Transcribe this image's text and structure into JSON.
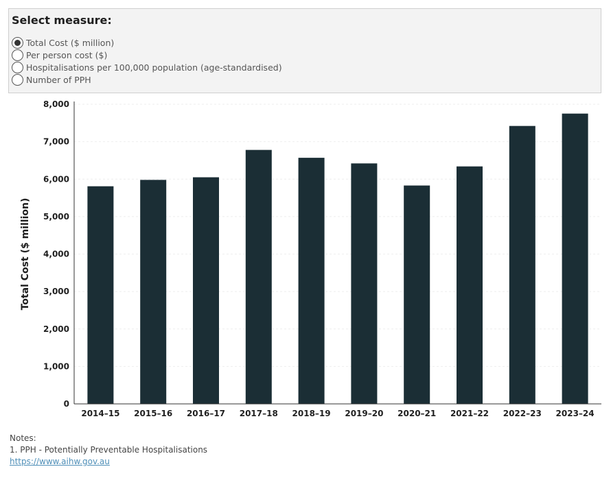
{
  "selector": {
    "title": "Select measure:",
    "options": [
      {
        "label": "Total Cost ($ million)",
        "selected": true
      },
      {
        "label": "Per person cost ($)",
        "selected": false
      },
      {
        "label": "Hospitalisations per 100,000 population (age-standardised)",
        "selected": false
      },
      {
        "label": "Number of PPH",
        "selected": false
      }
    ]
  },
  "chart_data": {
    "type": "bar",
    "categories": [
      "2014–15",
      "2015–16",
      "2016–17",
      "2017–18",
      "2018–19",
      "2019–20",
      "2020–21",
      "2021–22",
      "2022–23",
      "2023–24"
    ],
    "values": [
      5810,
      5980,
      6050,
      6780,
      6570,
      6420,
      5830,
      6340,
      7420,
      7750
    ],
    "title": "",
    "xlabel": "",
    "ylabel": "Total Cost ($ million)",
    "ylim": [
      0,
      8000
    ],
    "yticks": [
      0,
      1000,
      2000,
      3000,
      4000,
      5000,
      6000,
      7000,
      8000
    ],
    "ytick_labels": [
      "0",
      "1,000",
      "2,000",
      "3,000",
      "4,000",
      "5,000",
      "6,000",
      "7,000",
      "8,000"
    ],
    "grid": true,
    "bar_color": "#1b2e35"
  },
  "notes": {
    "heading": "Notes:",
    "items": [
      "1. PPH - Potentially Preventable Hospitalisations"
    ],
    "link": "https://www.aihw.gov.au"
  }
}
